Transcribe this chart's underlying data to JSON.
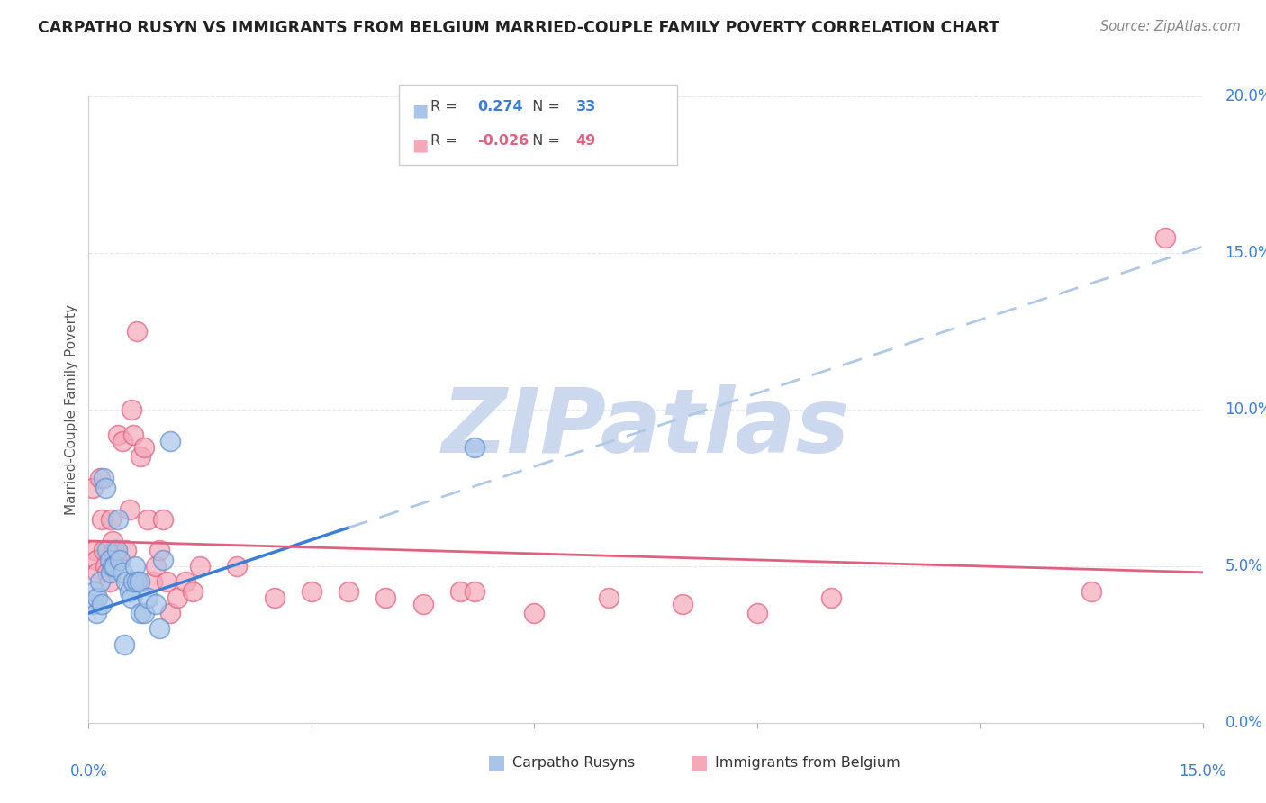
{
  "title": "CARPATHO RUSYN VS IMMIGRANTS FROM BELGIUM MARRIED-COUPLE FAMILY POVERTY CORRELATION CHART",
  "source": "Source: ZipAtlas.com",
  "ylabel": "Married-Couple Family Poverty",
  "yaxis_labels": [
    "0.0%",
    "5.0%",
    "10.0%",
    "15.0%",
    "20.0%"
  ],
  "yaxis_vals": [
    0,
    5,
    10,
    15,
    20
  ],
  "xlim": [
    0.0,
    15.0
  ],
  "ylim": [
    0.0,
    20.0
  ],
  "blue_label": "Carpatho Rusyns",
  "pink_label": "Immigrants from Belgium",
  "blue_R": 0.274,
  "blue_N": 33,
  "pink_R": -0.026,
  "pink_N": 49,
  "blue_color": "#a8c4e8",
  "pink_color": "#f4a8b8",
  "blue_edge": "#6090d0",
  "pink_edge": "#e06080",
  "blue_line_color": "#3a7fd5",
  "blue_dash_color": "#b0c8e8",
  "pink_line_color": "#e06080",
  "blue_scatter_x": [
    0.05,
    0.08,
    0.1,
    0.12,
    0.15,
    0.18,
    0.2,
    0.22,
    0.25,
    0.28,
    0.3,
    0.32,
    0.35,
    0.38,
    0.4,
    0.42,
    0.45,
    0.48,
    0.5,
    0.55,
    0.58,
    0.6,
    0.62,
    0.65,
    0.68,
    0.7,
    0.75,
    0.8,
    0.9,
    0.95,
    1.0,
    1.1,
    5.2
  ],
  "blue_scatter_y": [
    3.8,
    4.2,
    3.5,
    4.0,
    4.5,
    3.8,
    7.8,
    7.5,
    5.5,
    5.2,
    4.8,
    5.0,
    5.0,
    5.5,
    6.5,
    5.2,
    4.8,
    2.5,
    4.5,
    4.2,
    4.0,
    4.5,
    5.0,
    4.5,
    4.5,
    3.5,
    3.5,
    4.0,
    3.8,
    3.0,
    5.2,
    9.0,
    8.8
  ],
  "pink_scatter_x": [
    0.05,
    0.08,
    0.1,
    0.12,
    0.15,
    0.18,
    0.2,
    0.22,
    0.25,
    0.28,
    0.3,
    0.32,
    0.35,
    0.38,
    0.4,
    0.45,
    0.5,
    0.55,
    0.58,
    0.6,
    0.65,
    0.7,
    0.75,
    0.8,
    0.85,
    0.9,
    0.95,
    1.0,
    1.05,
    1.1,
    1.2,
    1.3,
    1.4,
    1.5,
    2.0,
    2.5,
    3.0,
    3.5,
    4.0,
    4.5,
    5.0,
    5.2,
    6.0,
    7.0,
    8.0,
    9.0,
    10.0,
    13.5,
    14.5
  ],
  "pink_scatter_y": [
    7.5,
    5.5,
    5.2,
    4.8,
    7.8,
    6.5,
    5.5,
    5.0,
    4.8,
    4.5,
    6.5,
    5.8,
    5.5,
    5.2,
    9.2,
    9.0,
    5.5,
    6.8,
    10.0,
    9.2,
    12.5,
    8.5,
    8.8,
    6.5,
    4.5,
    5.0,
    5.5,
    6.5,
    4.5,
    3.5,
    4.0,
    4.5,
    4.2,
    5.0,
    5.0,
    4.0,
    4.2,
    4.2,
    4.0,
    3.8,
    4.2,
    4.2,
    3.5,
    4.0,
    3.8,
    3.5,
    4.0,
    4.2,
    15.5
  ],
  "watermark": "ZIPatlas",
  "watermark_color": "#ccd8ee",
  "background_color": "#ffffff",
  "grid_color": "#e0e8f0",
  "blue_solid_end_x": 3.5,
  "blue_line_start_y": 3.5,
  "blue_line_end_y": 15.2,
  "pink_line_start_y": 5.8,
  "pink_line_end_y": 4.8
}
